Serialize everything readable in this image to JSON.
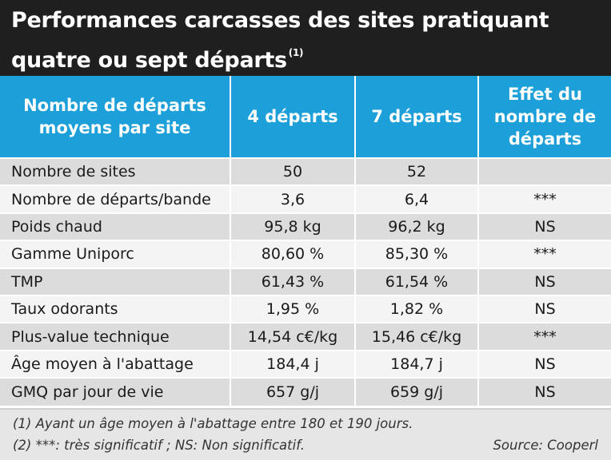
{
  "title": {
    "text": "Performances carcasses des sites pratiquant quatre ou sept départs",
    "note_ref": "(1)"
  },
  "table": {
    "headers": [
      "Nombre de départs moyens par site",
      "4 départs",
      "7 départs",
      "Effet du nombre de départs"
    ],
    "rows": [
      {
        "label": "Nombre de sites",
        "v4": "50",
        "v7": "52",
        "effect": ""
      },
      {
        "label": "Nombre de départs/bande",
        "v4": "3,6",
        "v7": "6,4",
        "effect": "***"
      },
      {
        "label": "Poids chaud",
        "v4": "95,8 kg",
        "v7": "96,2 kg",
        "effect": "NS"
      },
      {
        "label": "Gamme Uniporc",
        "v4": "80,60 %",
        "v7": "85,30 %",
        "effect": "***"
      },
      {
        "label": "TMP",
        "v4": "61,43 %",
        "v7": "61,54 %",
        "effect": "NS"
      },
      {
        "label": "Taux odorants",
        "v4": "1,95 %",
        "v7": "1,82 %",
        "effect": "NS"
      },
      {
        "label": "Plus-value technique",
        "v4": "14,54 c€/kg",
        "v7": "15,46 c€/kg",
        "effect": "***"
      },
      {
        "label": "Âge moyen à l'abattage",
        "v4": "184,4 j",
        "v7": "184,7 j",
        "effect": "NS"
      },
      {
        "label": "GMQ par jour de vie",
        "v4": "657 g/j",
        "v7": "659 g/j",
        "effect": "NS"
      }
    ]
  },
  "footnotes": {
    "note1": "(1) Ayant un âge moyen à l'abattage entre 180 et 190 jours.",
    "note2": "(2) ***: très significatif ; NS: Non significatif.",
    "source": "Source: Cooperl"
  },
  "colors": {
    "title_bg": "#1f1f1f",
    "header_bg": "#1d9fd9",
    "row_shade": "#dcdcdc",
    "row_plain": "#f4f4f4"
  }
}
